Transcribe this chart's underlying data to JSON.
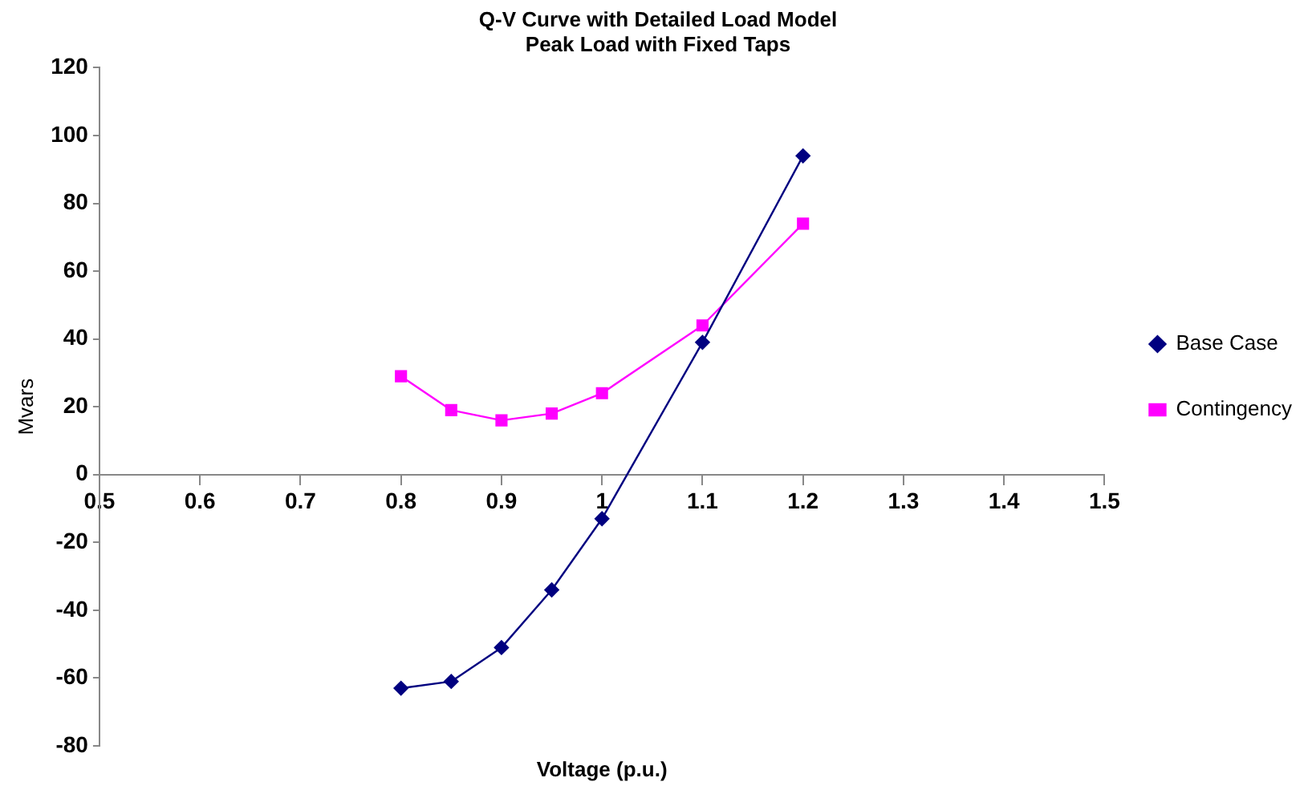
{
  "chart_data": {
    "type": "line",
    "title": "Q-V Curve with Detailed Load Model",
    "subtitle": "Peak Load with Fixed Taps",
    "xlabel": "Voltage (p.u.)",
    "ylabel": "Mvars",
    "x": [
      0.8,
      0.85,
      0.9,
      0.95,
      1.0,
      1.1,
      1.2
    ],
    "series": [
      {
        "name": "Base Case",
        "color": "#000080",
        "marker": "diamond",
        "values": [
          -63,
          -61,
          -51,
          -34,
          -13,
          39,
          94
        ]
      },
      {
        "name": "Contingency",
        "color": "#ff00ff",
        "marker": "square",
        "values": [
          29,
          19,
          16,
          18,
          24,
          44,
          74
        ]
      }
    ],
    "xlim": [
      0.5,
      1.5
    ],
    "xticks": [
      0.5,
      0.6,
      0.7,
      0.8,
      0.9,
      1,
      1.1,
      1.2,
      1.3,
      1.4,
      1.5
    ],
    "ylim": [
      -80,
      120
    ],
    "yticks": [
      -80,
      -60,
      -40,
      -20,
      0,
      20,
      40,
      60,
      80,
      100,
      120
    ],
    "grid": false,
    "legend": "right"
  }
}
